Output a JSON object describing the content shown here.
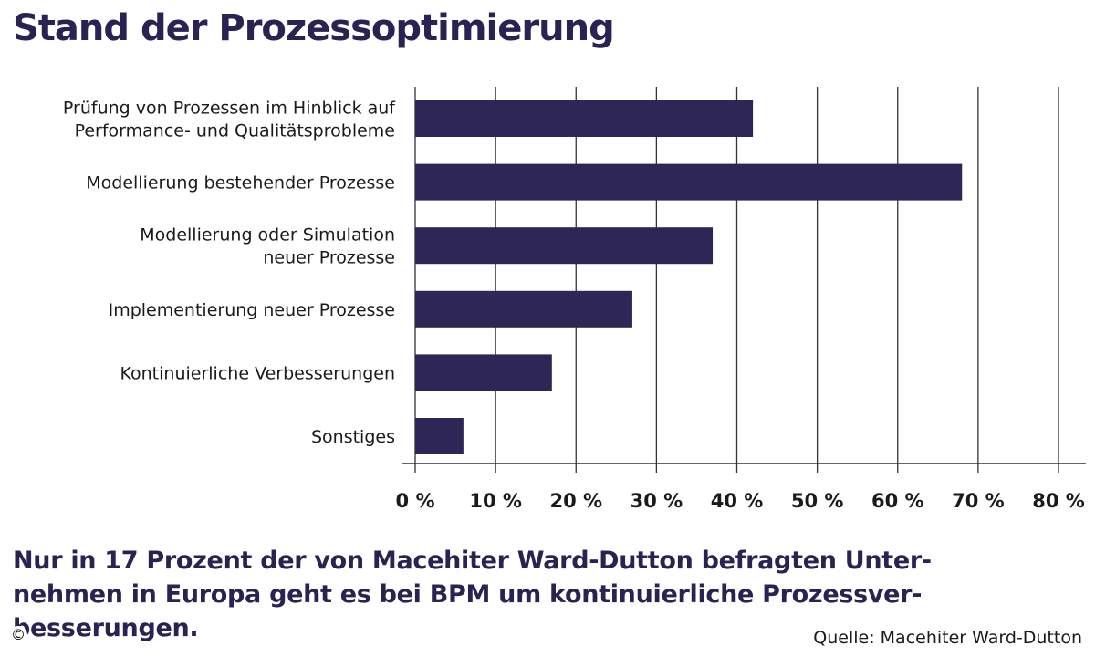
{
  "title": "Stand der Prozessoptimierung",
  "chart_data": {
    "type": "bar",
    "orientation": "horizontal",
    "title": "Stand der Prozessoptimierung",
    "categories": [
      [
        "Prüfung von Prozessen im Hinblick auf",
        "Performance- und Qualitätsprobleme"
      ],
      [
        "Modellierung bestehender Prozesse"
      ],
      [
        "Modellierung oder Simulation",
        "neuer Prozesse"
      ],
      [
        "Implementierung neuer Prozesse"
      ],
      [
        "Kontinuierliche Verbesserungen"
      ],
      [
        "Sonstiges"
      ]
    ],
    "values": [
      42,
      68,
      37,
      27,
      17,
      6
    ],
    "xlim": [
      0,
      80
    ],
    "xticks": [
      0,
      10,
      20,
      30,
      40,
      50,
      60,
      70,
      80
    ],
    "xtick_labels": [
      "0 %",
      "10 %",
      "20 %",
      "30 %",
      "40 %",
      "50 %",
      "60 %",
      "70 %",
      "80 %"
    ],
    "grid": true,
    "bar_color": "#2e2657"
  },
  "caption_lines": [
    "Nur in 17 Prozent der von Macehiter Ward-Dutton befragten Unter-",
    "nehmen in Europa geht es bei BPM um kontinuierliche Prozessver-",
    "besserungen."
  ],
  "source": "Quelle: Macehiter Ward-Dutton",
  "copyright_symbol": "©"
}
